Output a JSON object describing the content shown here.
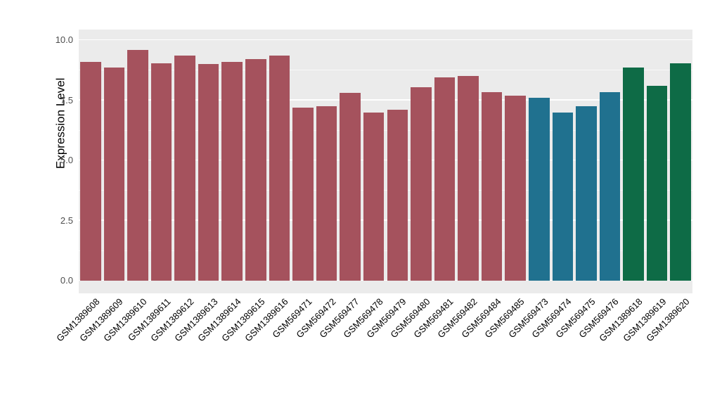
{
  "chart_data": {
    "type": "bar",
    "title": "",
    "xlabel": "",
    "ylabel": "Expression Level",
    "ylim": [
      0,
      10.4
    ],
    "yticks": [
      0.0,
      2.5,
      5.0,
      7.5,
      10.0
    ],
    "ytick_labels": [
      "0.0",
      "2.5",
      "5.0",
      "7.5",
      "10.0"
    ],
    "minor_ticks": [
      1.25,
      3.75,
      6.25,
      8.75
    ],
    "grid": "on",
    "legend_position": "none",
    "panel_background": "#EBEBEB",
    "palette": {
      "maroon": "#A5525D",
      "teal": "#20718F",
      "green": "#0E6B46"
    },
    "categories": [
      "GSM1389608",
      "GSM1389609",
      "GSM1389610",
      "GSM1389611",
      "GSM1389612",
      "GSM1389613",
      "GSM1389614",
      "GSM1389615",
      "GSM1389616",
      "GSM569471",
      "GSM569472",
      "GSM569477",
      "GSM569478",
      "GSM569479",
      "GSM569480",
      "GSM569481",
      "GSM569482",
      "GSM569484",
      "GSM569485",
      "GSM569473",
      "GSM569474",
      "GSM569475",
      "GSM569476",
      "GSM1389618",
      "GSM1389619",
      "GSM1389620"
    ],
    "values": [
      9.1,
      8.85,
      9.6,
      9.05,
      9.35,
      9.0,
      9.1,
      9.2,
      9.35,
      7.2,
      7.25,
      7.8,
      7.0,
      7.1,
      8.05,
      8.45,
      8.5,
      7.85,
      7.7,
      7.6,
      7.0,
      7.25,
      7.85,
      8.85,
      8.1,
      9.05
    ],
    "bar_colors": [
      "#A5525D",
      "#A5525D",
      "#A5525D",
      "#A5525D",
      "#A5525D",
      "#A5525D",
      "#A5525D",
      "#A5525D",
      "#A5525D",
      "#A5525D",
      "#A5525D",
      "#A5525D",
      "#A5525D",
      "#A5525D",
      "#A5525D",
      "#A5525D",
      "#A5525D",
      "#A5525D",
      "#A5525D",
      "#20718F",
      "#20718F",
      "#20718F",
      "#20718F",
      "#0E6B46",
      "#0E6B46",
      "#0E6B46"
    ]
  }
}
